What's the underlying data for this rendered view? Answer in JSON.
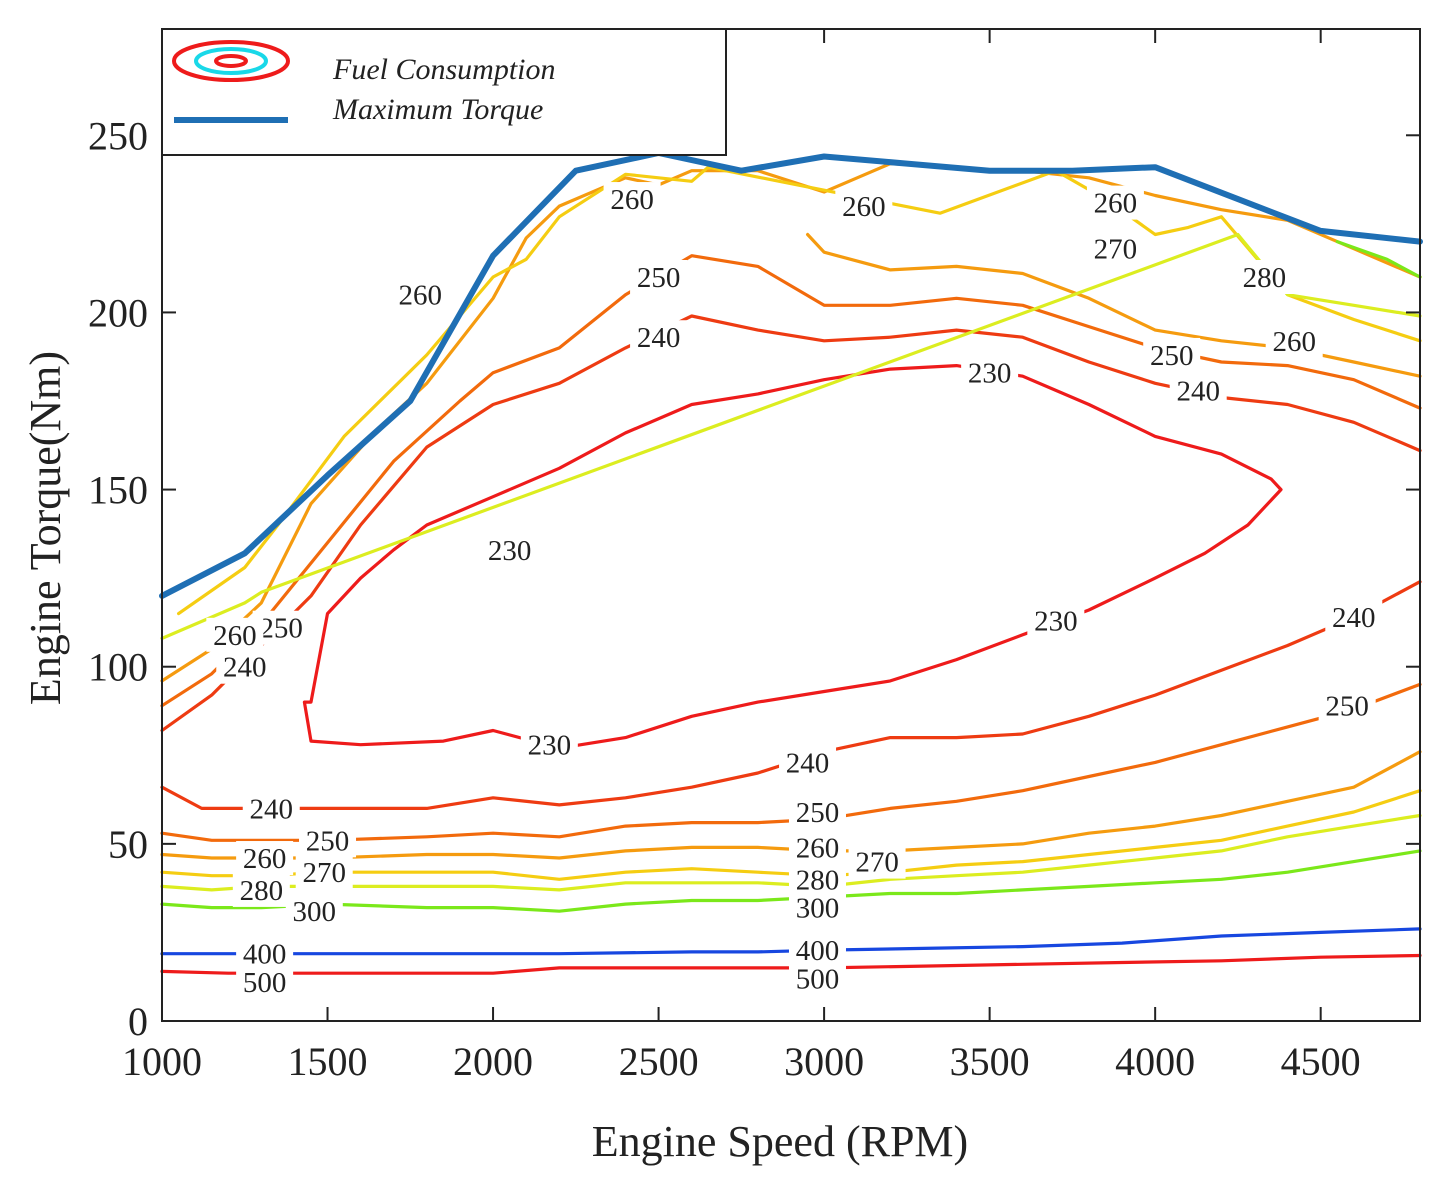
{
  "chart_data": {
    "type": "contour",
    "xlabel": "Engine Speed (RPM)",
    "ylabel": "Engine Torque(Nm)",
    "xlim": [
      1000,
      4800
    ],
    "ylim": [
      0,
      280
    ],
    "xticks": [
      1000,
      1500,
      2000,
      2500,
      3000,
      3500,
      4000,
      4500
    ],
    "yticks": [
      0,
      50,
      100,
      150,
      200,
      250
    ],
    "grid": false,
    "legend": {
      "position": "top-left",
      "entries": [
        {
          "label": "Fuel Consumption",
          "kind": "contour"
        },
        {
          "label": "Maximum Torque",
          "kind": "line",
          "color": "#1f6fb4"
        }
      ]
    },
    "max_torque": {
      "name": "Maximum Torque",
      "color": "#1f6fb4",
      "x": [
        1000,
        1250,
        1500,
        1750,
        2000,
        2250,
        2500,
        2750,
        3000,
        3250,
        3500,
        3750,
        4000,
        4250,
        4500,
        4800
      ],
      "y": [
        120,
        132,
        154,
        175,
        216,
        240,
        245,
        240,
        244,
        242,
        240,
        240,
        241,
        232,
        223,
        220
      ]
    },
    "contours": [
      {
        "level": 230,
        "color": "#ee1b1b",
        "closed": true,
        "x": [
          1450,
          1500,
          1600,
          1700,
          1800,
          2000,
          2200,
          2400,
          2600,
          2800,
          3000,
          3200,
          3400,
          3600,
          3800,
          4000,
          4200,
          4350,
          4380,
          4280,
          4150,
          4000,
          3800,
          3600,
          3400,
          3200,
          3000,
          2800,
          2600,
          2400,
          2200,
          2000,
          1850,
          1600,
          1450,
          1430
        ],
        "y": [
          90,
          115,
          125,
          133,
          140,
          148,
          156,
          166,
          174,
          177,
          181,
          184,
          185,
          182,
          174,
          165,
          160,
          153,
          150,
          140,
          132,
          125,
          116,
          109,
          102,
          96,
          93,
          90,
          86,
          80,
          77,
          82,
          79,
          78,
          79,
          90
        ],
        "labels": [
          {
            "x": 2050,
            "y": 133
          },
          {
            "x": 3500,
            "y": 183
          },
          {
            "x": 3700,
            "y": 113
          },
          {
            "x": 2170,
            "y": 78
          }
        ]
      },
      {
        "level": 240,
        "color": "#ee3b12",
        "closed": false,
        "x": [
          1000,
          1150,
          1300,
          1450,
          1600,
          1800,
          2000,
          2200,
          2400,
          2600,
          2800,
          3000,
          3200,
          3400,
          3600,
          3800,
          4000,
          4200,
          4400,
          4600,
          4800
        ],
        "y": [
          82,
          92,
          106,
          120,
          140,
          162,
          174,
          180,
          190,
          199,
          195,
          192,
          193,
          195,
          193,
          186,
          180,
          176,
          174,
          169,
          161
        ],
        "labels": [
          {
            "x": 1250,
            "y": 100
          },
          {
            "x": 2500,
            "y": 193
          },
          {
            "x": 4130,
            "y": 178
          }
        ]
      },
      {
        "level": 240,
        "color": "#ee3b12",
        "closed": false,
        "x": [
          1000,
          1120,
          1300,
          1500,
          1800,
          2000,
          2200,
          2400,
          2600,
          2800,
          3000,
          3200,
          3400,
          3600,
          3800,
          4000,
          4200,
          4400,
          4600,
          4800
        ],
        "y": [
          66,
          60,
          60,
          60,
          60,
          63,
          61,
          63,
          66,
          70,
          76,
          80,
          80,
          81,
          86,
          92,
          99,
          106,
          114,
          124
        ],
        "labels": [
          {
            "x": 1330,
            "y": 60
          },
          {
            "x": 2950,
            "y": 73
          },
          {
            "x": 4600,
            "y": 114
          }
        ]
      },
      {
        "level": 250,
        "color": "#f26a0c",
        "closed": false,
        "x": [
          1000,
          1150,
          1300,
          1500,
          1700,
          1900,
          2000,
          2200,
          2400,
          2600,
          2800,
          3000,
          3200,
          3400,
          3600,
          3800,
          4000,
          4200,
          4400,
          4600,
          4800
        ],
        "y": [
          89,
          98,
          112,
          135,
          158,
          175,
          183,
          190,
          205,
          216,
          213,
          202,
          202,
          204,
          202,
          196,
          190,
          186,
          185,
          181,
          173
        ],
        "labels": [
          {
            "x": 1360,
            "y": 111
          },
          {
            "x": 2500,
            "y": 210
          },
          {
            "x": 4050,
            "y": 188
          }
        ]
      },
      {
        "level": 250,
        "color": "#f26a0c",
        "closed": false,
        "x": [
          1000,
          1150,
          1300,
          1500,
          1800,
          2000,
          2200,
          2400,
          2600,
          2800,
          3000,
          3200,
          3400,
          3600,
          3800,
          4000,
          4200,
          4400,
          4600,
          4800
        ],
        "y": [
          53,
          51,
          51,
          51,
          52,
          53,
          52,
          55,
          56,
          56,
          57,
          60,
          62,
          65,
          69,
          73,
          78,
          83,
          88,
          95
        ],
        "labels": [
          {
            "x": 1500,
            "y": 51
          },
          {
            "x": 2980,
            "y": 59
          },
          {
            "x": 4580,
            "y": 89
          }
        ]
      },
      {
        "level": 260,
        "color": "#f59b0f",
        "closed": false,
        "x": [
          1000,
          1150,
          1300,
          1450,
          1650,
          1800,
          2000,
          2100,
          2200,
          2400,
          2500,
          2600,
          2800,
          3000,
          3100,
          3200,
          3400,
          3500,
          3600,
          3800,
          4000,
          4200,
          4400,
          4600,
          4800
        ],
        "y": [
          96,
          105,
          118,
          146,
          167,
          180,
          204,
          221,
          230,
          238,
          236,
          240,
          240,
          234,
          238,
          242,
          241,
          240,
          240,
          238,
          233,
          229,
          226,
          218,
          210
        ],
        "labels": [
          {
            "x": 1220,
            "y": 109
          },
          {
            "x": 1780,
            "y": 205
          },
          {
            "x": 2420,
            "y": 232
          },
          {
            "x": 3120,
            "y": 230
          },
          {
            "x": 3880,
            "y": 231
          }
        ]
      },
      {
        "level": 260,
        "color": "#f59b0f",
        "closed": false,
        "x": [
          2950,
          3000,
          3200,
          3400,
          3600,
          3800,
          4000,
          4200,
          4400,
          4600,
          4800
        ],
        "y": [
          222,
          217,
          212,
          213,
          211,
          204,
          195,
          192,
          190,
          186,
          182
        ],
        "labels": [
          {
            "x": 4420,
            "y": 192
          }
        ]
      },
      {
        "level": 260,
        "color": "#f59b0f",
        "closed": false,
        "x": [
          1000,
          1150,
          1300,
          1500,
          1800,
          2000,
          2200,
          2400,
          2600,
          2800,
          3000,
          3200,
          3400,
          3600,
          3800,
          4000,
          4200,
          4400,
          4600,
          4800
        ],
        "y": [
          47,
          46,
          46,
          46,
          47,
          47,
          46,
          48,
          49,
          49,
          48,
          48,
          49,
          50,
          53,
          55,
          58,
          62,
          66,
          76
        ],
        "labels": [
          {
            "x": 1310,
            "y": 46
          },
          {
            "x": 2980,
            "y": 49
          }
        ]
      },
      {
        "level": 270,
        "color": "#f5cd12",
        "closed": false,
        "x": [
          1050,
          1250,
          1350,
          1550,
          1800,
          2000,
          2100,
          2200,
          2400,
          2600,
          2650,
          3350,
          3700,
          3850,
          4000,
          4100,
          4200,
          4400,
          4600,
          4800
        ],
        "y": [
          115,
          128,
          140,
          165,
          188,
          210,
          215,
          227,
          239,
          237,
          241,
          228,
          240,
          232,
          222,
          224,
          227,
          205,
          198,
          192
        ],
        "labels": [
          {
            "x": 3880,
            "y": 218
          }
        ]
      },
      {
        "level": 270,
        "color": "#f5cd12",
        "closed": false,
        "x": [
          1000,
          1150,
          1300,
          1500,
          1800,
          2000,
          2200,
          2400,
          2600,
          2800,
          3000,
          3200,
          3400,
          3600,
          3800,
          4000,
          4200,
          4400,
          4600,
          4800
        ],
        "y": [
          42,
          41,
          41,
          42,
          42,
          42,
          40,
          42,
          43,
          42,
          41,
          42,
          44,
          45,
          47,
          49,
          51,
          55,
          59,
          65
        ],
        "labels": [
          {
            "x": 1490,
            "y": 42
          },
          {
            "x": 3160,
            "y": 45
          }
        ]
      },
      {
        "level": 280,
        "color": "#dced20",
        "closed": false,
        "x": [
          1000,
          1250,
          1300,
          4250,
          4400,
          4600,
          4800
        ],
        "y": [
          108,
          118,
          121,
          222,
          205,
          202,
          199
        ],
        "labels": [
          {
            "x": 4330,
            "y": 210
          }
        ]
      },
      {
        "level": 280,
        "color": "#dced20",
        "closed": false,
        "x": [
          1000,
          1150,
          1300,
          1500,
          1800,
          2000,
          2200,
          2400,
          2600,
          2800,
          3000,
          3200,
          3400,
          3600,
          3800,
          4000,
          4200,
          4400,
          4600,
          4800
        ],
        "y": [
          38,
          37,
          38,
          38,
          38,
          38,
          37,
          39,
          39,
          39,
          38,
          40,
          41,
          42,
          44,
          46,
          48,
          52,
          55,
          58
        ],
        "labels": [
          {
            "x": 1300,
            "y": 37
          },
          {
            "x": 2980,
            "y": 40
          }
        ]
      },
      {
        "level": 300,
        "color": "#7be81a",
        "closed": false,
        "x": [
          4550,
          4700,
          4800
        ],
        "y": [
          220,
          215,
          210
        ],
        "labels": []
      },
      {
        "level": 300,
        "color": "#7be81a",
        "closed": false,
        "x": [
          1000,
          1150,
          1300,
          1500,
          1800,
          2000,
          2200,
          2400,
          2600,
          2800,
          3000,
          3200,
          3400,
          3600,
          3800,
          4000,
          4200,
          4400,
          4600,
          4800
        ],
        "y": [
          33,
          32,
          32,
          33,
          32,
          32,
          31,
          33,
          34,
          34,
          35,
          36,
          36,
          37,
          38,
          39,
          40,
          42,
          45,
          48
        ],
        "labels": [
          {
            "x": 1460,
            "y": 31
          },
          {
            "x": 2980,
            "y": 32
          }
        ]
      },
      {
        "level": 400,
        "color": "#1747e0",
        "closed": false,
        "x": [
          1000,
          1200,
          1500,
          2000,
          2200,
          2600,
          2800,
          3000,
          3300,
          3600,
          3900,
          4200,
          4500,
          4800
        ],
        "y": [
          19,
          19,
          19,
          19,
          19,
          19.5,
          19.5,
          20,
          20.5,
          21,
          22,
          24,
          25,
          26
        ],
        "labels": [
          {
            "x": 1310,
            "y": 19
          },
          {
            "x": 2980,
            "y": 20
          }
        ]
      },
      {
        "level": 500,
        "color": "#ee1b1b",
        "closed": false,
        "x": [
          1000,
          1200,
          1500,
          2000,
          2200,
          2600,
          2800,
          3000,
          3300,
          3600,
          3900,
          4200,
          4500,
          4800
        ],
        "y": [
          14,
          13.5,
          13.5,
          13.5,
          15,
          15,
          15,
          15,
          15.5,
          16,
          16.5,
          17,
          18,
          18.5
        ],
        "labels": [
          {
            "x": 1310,
            "y": 11
          },
          {
            "x": 2980,
            "y": 12
          }
        ]
      }
    ]
  }
}
